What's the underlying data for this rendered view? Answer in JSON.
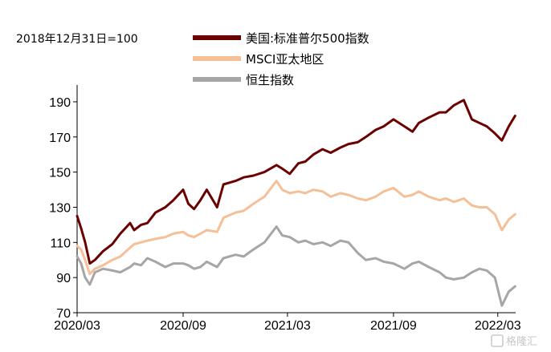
{
  "note": "2018年12月31日=100",
  "watermark": "格隆汇",
  "chart_data": {
    "type": "line",
    "x_ticks": [
      "2020/03",
      "2020/09",
      "2021/03",
      "2021/09",
      "2022/03"
    ],
    "y_ticks": [
      70,
      90,
      110,
      130,
      150,
      170,
      190
    ],
    "ylim": [
      70,
      195
    ],
    "grid": false,
    "legend_position": "top",
    "series": [
      {
        "name": "美国:标准普尔500指数",
        "color": "#6b0000",
        "x": [
          "2020-03-01",
          "2020-03-08",
          "2020-03-15",
          "2020-03-23",
          "2020-04-01",
          "2020-04-15",
          "2020-05-01",
          "2020-05-15",
          "2020-06-01",
          "2020-06-08",
          "2020-06-20",
          "2020-07-01",
          "2020-07-15",
          "2020-08-01",
          "2020-08-15",
          "2020-09-01",
          "2020-09-10",
          "2020-09-20",
          "2020-10-01",
          "2020-10-12",
          "2020-10-30",
          "2020-11-10",
          "2020-12-01",
          "2020-12-15",
          "2021-01-01",
          "2021-01-20",
          "2021-02-10",
          "2021-02-20",
          "2021-03-05",
          "2021-03-20",
          "2021-04-01",
          "2021-04-15",
          "2021-05-01",
          "2021-05-15",
          "2021-06-01",
          "2021-06-15",
          "2021-07-01",
          "2021-07-15",
          "2021-08-01",
          "2021-08-15",
          "2021-09-01",
          "2021-09-20",
          "2021-10-04",
          "2021-10-15",
          "2021-11-01",
          "2021-11-20",
          "2021-12-01",
          "2021-12-15",
          "2022-01-01",
          "2022-01-15",
          "2022-01-28",
          "2022-02-10",
          "2022-02-24",
          "2022-03-08",
          "2022-03-20",
          "2022-03-31"
        ],
        "values": [
          125,
          118,
          110,
          98,
          100,
          105,
          109,
          115,
          121,
          117,
          120,
          121,
          127,
          130,
          134,
          140,
          132,
          129,
          134,
          140,
          130,
          143,
          145,
          147,
          148,
          150,
          154,
          152,
          149,
          155,
          156,
          160,
          163,
          161,
          164,
          166,
          167,
          170,
          174,
          176,
          180,
          176,
          173,
          178,
          181,
          184,
          184,
          188,
          191,
          180,
          178,
          176,
          172,
          168,
          176,
          182
        ]
      },
      {
        "name": "MSCI亚太地区",
        "color": "#f5bf98",
        "x": [
          "2020-03-01",
          "2020-03-08",
          "2020-03-15",
          "2020-03-23",
          "2020-04-01",
          "2020-04-15",
          "2020-05-01",
          "2020-05-15",
          "2020-06-01",
          "2020-06-08",
          "2020-06-20",
          "2020-07-01",
          "2020-07-15",
          "2020-08-01",
          "2020-08-15",
          "2020-09-01",
          "2020-09-10",
          "2020-09-20",
          "2020-10-01",
          "2020-10-12",
          "2020-10-30",
          "2020-11-10",
          "2020-12-01",
          "2020-12-15",
          "2021-01-01",
          "2021-01-20",
          "2021-02-10",
          "2021-02-20",
          "2021-03-05",
          "2021-03-20",
          "2021-04-01",
          "2021-04-15",
          "2021-05-01",
          "2021-05-15",
          "2021-06-01",
          "2021-06-15",
          "2021-07-01",
          "2021-07-15",
          "2021-08-01",
          "2021-08-15",
          "2021-09-01",
          "2021-09-20",
          "2021-10-04",
          "2021-10-15",
          "2021-11-01",
          "2021-11-20",
          "2021-12-01",
          "2021-12-15",
          "2022-01-01",
          "2022-01-15",
          "2022-01-28",
          "2022-02-10",
          "2022-02-24",
          "2022-03-08",
          "2022-03-20",
          "2022-03-31"
        ],
        "values": [
          108,
          106,
          100,
          92,
          95,
          97,
          100,
          102,
          107,
          109,
          110,
          111,
          112,
          113,
          115,
          116,
          114,
          113,
          115,
          117,
          116,
          124,
          127,
          128,
          132,
          136,
          145,
          140,
          138,
          139,
          138,
          140,
          139,
          136,
          138,
          137,
          135,
          134,
          136,
          139,
          141,
          136,
          137,
          139,
          136,
          134,
          135,
          133,
          135,
          131,
          130,
          130,
          126,
          117,
          123,
          126
        ]
      },
      {
        "name": "恒生指数",
        "color": "#a6a6a6",
        "x": [
          "2020-03-01",
          "2020-03-08",
          "2020-03-15",
          "2020-03-23",
          "2020-04-01",
          "2020-04-15",
          "2020-05-01",
          "2020-05-15",
          "2020-06-01",
          "2020-06-08",
          "2020-06-20",
          "2020-07-01",
          "2020-07-15",
          "2020-08-01",
          "2020-08-15",
          "2020-09-01",
          "2020-09-10",
          "2020-09-20",
          "2020-10-01",
          "2020-10-12",
          "2020-10-30",
          "2020-11-10",
          "2020-12-01",
          "2020-12-15",
          "2021-01-01",
          "2021-01-20",
          "2021-02-10",
          "2021-02-20",
          "2021-03-05",
          "2021-03-20",
          "2021-04-01",
          "2021-04-15",
          "2021-05-01",
          "2021-05-15",
          "2021-06-01",
          "2021-06-15",
          "2021-07-01",
          "2021-07-15",
          "2021-08-01",
          "2021-08-15",
          "2021-09-01",
          "2021-09-20",
          "2021-10-04",
          "2021-10-15",
          "2021-11-01",
          "2021-11-20",
          "2021-12-01",
          "2021-12-15",
          "2022-01-01",
          "2022-01-15",
          "2022-01-28",
          "2022-02-10",
          "2022-02-24",
          "2022-03-08",
          "2022-03-20",
          "2022-03-31"
        ],
        "values": [
          102,
          98,
          90,
          86,
          93,
          95,
          94,
          93,
          96,
          98,
          97,
          101,
          99,
          96,
          98,
          98,
          97,
          95,
          96,
          99,
          96,
          101,
          103,
          102,
          106,
          110,
          119,
          114,
          113,
          110,
          111,
          109,
          110,
          108,
          111,
          110,
          104,
          100,
          101,
          99,
          98,
          95,
          98,
          99,
          96,
          93,
          90,
          89,
          90,
          93,
          95,
          94,
          90,
          74,
          82,
          85
        ]
      }
    ]
  }
}
